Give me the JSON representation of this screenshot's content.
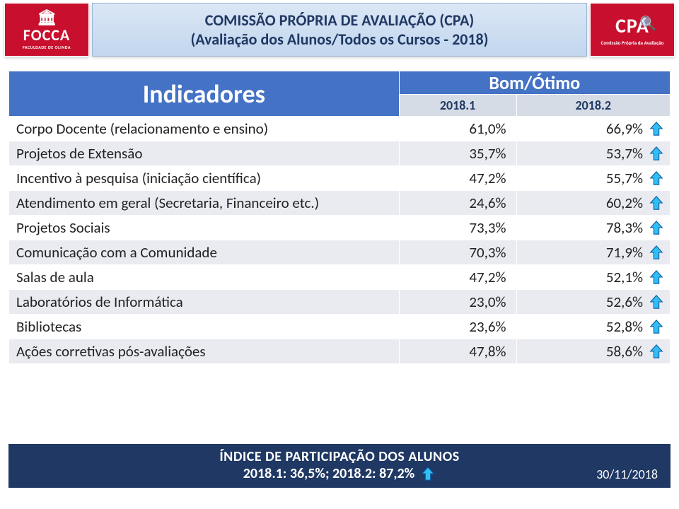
{
  "colors": {
    "brand_red": "#c8102e",
    "header_bg_top": "#dbe7f5",
    "header_bg_bottom": "#c2d6ee",
    "table_header_bg": "#4472c4",
    "subheader_bg": "#d6dce5",
    "row_alt_bg": "#e9ebf1",
    "footer_bg": "#1f3864",
    "arrow_fill": "#33bdf2",
    "arrow_stroke": "#0b5aa5",
    "text_dark": "#1f3864"
  },
  "logo_left": {
    "name": "FOCCA",
    "sub": "FACULDADE DE OLINDA"
  },
  "logo_right": {
    "name": "CPA",
    "sub": "Comissão Própria da Avaliação"
  },
  "title": {
    "line1": "COMISSÃO PRÓPRIA DE AVALIAÇÃO (CPA)",
    "line2": "(Avaliação dos Alunos/Todos os Cursos - 2018)"
  },
  "table": {
    "headers": {
      "indicadores": "Indicadores",
      "bom_otimo": "Bom/Ótimo",
      "period1": "2018.1",
      "period2": "2018.2"
    },
    "rows": [
      {
        "label": "Corpo Docente (relacionamento e ensino)",
        "p1": "61,0%",
        "p2": "66,9%",
        "trend": "up"
      },
      {
        "label": "Projetos de Extensão",
        "p1": "35,7%",
        "p2": "53,7%",
        "trend": "up"
      },
      {
        "label": "Incentivo à pesquisa (iniciação científica)",
        "p1": "47,2%",
        "p2": "55,7%",
        "trend": "up"
      },
      {
        "label": "Atendimento em geral (Secretaria, Financeiro etc.)",
        "p1": "24,6%",
        "p2": "60,2%",
        "trend": "up"
      },
      {
        "label": "Projetos Sociais",
        "p1": "73,3%",
        "p2": "78,3%",
        "trend": "up"
      },
      {
        "label": "Comunicação com a Comunidade",
        "p1": "70,3%",
        "p2": "71,9%",
        "trend": "up"
      },
      {
        "label": "Salas de aula",
        "p1": "47,2%",
        "p2": "52,1%",
        "trend": "up"
      },
      {
        "label": "Laboratórios de Informática",
        "p1": "23,0%",
        "p2": "52,6%",
        "trend": "up"
      },
      {
        "label": "Bibliotecas",
        "p1": "23,6%",
        "p2": "52,8%",
        "trend": "up"
      },
      {
        "label": "Ações corretivas pós-avaliações",
        "p1": "47,8%",
        "p2": "58,6%",
        "trend": "up"
      }
    ]
  },
  "footer": {
    "line1": "ÍNDICE DE PARTICIPAÇÃO DOS ALUNOS",
    "line2": "2018.1: 36,5%; 2018.2: 87,2%",
    "date": "30/11/2018"
  }
}
